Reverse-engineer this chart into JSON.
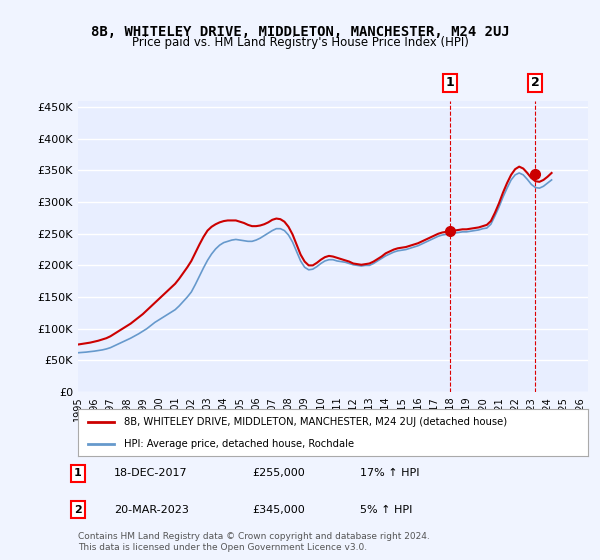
{
  "title": "8B, WHITELEY DRIVE, MIDDLETON, MANCHESTER, M24 2UJ",
  "subtitle": "Price paid vs. HM Land Registry's House Price Index (HPI)",
  "ylabel_ticks": [
    "£0",
    "£50K",
    "£100K",
    "£150K",
    "£200K",
    "£250K",
    "£300K",
    "£350K",
    "£400K",
    "£450K"
  ],
  "ytick_vals": [
    0,
    50000,
    100000,
    150000,
    200000,
    250000,
    300000,
    350000,
    400000,
    450000
  ],
  "ylim": [
    0,
    460000
  ],
  "xlim_start": 1995.0,
  "xlim_end": 2026.5,
  "xtick_years": [
    1995,
    1996,
    1997,
    1998,
    1999,
    2000,
    2001,
    2002,
    2003,
    2004,
    2005,
    2006,
    2007,
    2008,
    2009,
    2010,
    2011,
    2012,
    2013,
    2014,
    2015,
    2016,
    2017,
    2018,
    2019,
    2020,
    2021,
    2022,
    2023,
    2024,
    2025,
    2026
  ],
  "background_color": "#f0f4ff",
  "plot_bg_color": "#e8eeff",
  "grid_color": "#ffffff",
  "red_line_color": "#cc0000",
  "blue_line_color": "#6699cc",
  "marker1_color": "#cc0000",
  "marker2_color": "#cc0000",
  "vline_color": "#dd0000",
  "legend_label1": "8B, WHITELEY DRIVE, MIDDLETON, MANCHESTER, M24 2UJ (detached house)",
  "legend_label2": "HPI: Average price, detached house, Rochdale",
  "point1_label": "1",
  "point1_date": "18-DEC-2017",
  "point1_price": "£255,000",
  "point1_hpi": "17% ↑ HPI",
  "point1_x": 2017.96,
  "point1_y": 255000,
  "point2_label": "2",
  "point2_date": "20-MAR-2023",
  "point2_price": "£345,000",
  "point2_hpi": "5% ↑ HPI",
  "point2_x": 2023.22,
  "point2_y": 345000,
  "footer": "Contains HM Land Registry data © Crown copyright and database right 2024.\nThis data is licensed under the Open Government Licence v3.0.",
  "hpi_data_x": [
    1995.0,
    1995.25,
    1995.5,
    1995.75,
    1996.0,
    1996.25,
    1996.5,
    1996.75,
    1997.0,
    1997.25,
    1997.5,
    1997.75,
    1998.0,
    1998.25,
    1998.5,
    1998.75,
    1999.0,
    1999.25,
    1999.5,
    1999.75,
    2000.0,
    2000.25,
    2000.5,
    2000.75,
    2001.0,
    2001.25,
    2001.5,
    2001.75,
    2002.0,
    2002.25,
    2002.5,
    2002.75,
    2003.0,
    2003.25,
    2003.5,
    2003.75,
    2004.0,
    2004.25,
    2004.5,
    2004.75,
    2005.0,
    2005.25,
    2005.5,
    2005.75,
    2006.0,
    2006.25,
    2006.5,
    2006.75,
    2007.0,
    2007.25,
    2007.5,
    2007.75,
    2008.0,
    2008.25,
    2008.5,
    2008.75,
    2009.0,
    2009.25,
    2009.5,
    2009.75,
    2010.0,
    2010.25,
    2010.5,
    2010.75,
    2011.0,
    2011.25,
    2011.5,
    2011.75,
    2012.0,
    2012.25,
    2012.5,
    2012.75,
    2013.0,
    2013.25,
    2013.5,
    2013.75,
    2014.0,
    2014.25,
    2014.5,
    2014.75,
    2015.0,
    2015.25,
    2015.5,
    2015.75,
    2016.0,
    2016.25,
    2016.5,
    2016.75,
    2017.0,
    2017.25,
    2017.5,
    2017.75,
    2018.0,
    2018.25,
    2018.5,
    2018.75,
    2019.0,
    2019.25,
    2019.5,
    2019.75,
    2020.0,
    2020.25,
    2020.5,
    2020.75,
    2021.0,
    2021.25,
    2021.5,
    2021.75,
    2022.0,
    2022.25,
    2022.5,
    2022.75,
    2023.0,
    2023.25,
    2023.5,
    2023.75,
    2024.0,
    2024.25
  ],
  "hpi_data_y": [
    62000,
    62500,
    63000,
    63800,
    64500,
    65500,
    66500,
    68000,
    70000,
    73000,
    76000,
    79000,
    82000,
    85000,
    88500,
    92000,
    96000,
    100000,
    105000,
    110000,
    114000,
    118000,
    122000,
    126000,
    130000,
    136000,
    143000,
    150000,
    158000,
    170000,
    183000,
    196000,
    208000,
    218000,
    226000,
    232000,
    236000,
    238000,
    240000,
    241000,
    240000,
    239000,
    238000,
    238000,
    240000,
    243000,
    247000,
    251000,
    255000,
    258000,
    258000,
    255000,
    248000,
    237000,
    222000,
    207000,
    197000,
    193000,
    194000,
    198000,
    203000,
    207000,
    209000,
    209000,
    207000,
    206000,
    205000,
    203000,
    201000,
    200000,
    199000,
    200000,
    200000,
    203000,
    207000,
    211000,
    215000,
    218000,
    221000,
    223000,
    224000,
    225000,
    227000,
    229000,
    231000,
    234000,
    237000,
    240000,
    243000,
    246000,
    248000,
    249000,
    250000,
    251000,
    252000,
    253000,
    253000,
    254000,
    255000,
    256000,
    258000,
    259000,
    265000,
    278000,
    292000,
    308000,
    322000,
    335000,
    343000,
    346000,
    343000,
    336000,
    328000,
    323000,
    322000,
    325000,
    330000,
    335000
  ],
  "red_data_x": [
    1995.0,
    1995.25,
    1995.5,
    1995.75,
    1996.0,
    1996.25,
    1996.5,
    1996.75,
    1997.0,
    1997.25,
    1997.5,
    1997.75,
    1998.0,
    1998.25,
    1998.5,
    1998.75,
    1999.0,
    1999.25,
    1999.5,
    1999.75,
    2000.0,
    2000.25,
    2000.5,
    2000.75,
    2001.0,
    2001.25,
    2001.5,
    2001.75,
    2002.0,
    2002.25,
    2002.5,
    2002.75,
    2003.0,
    2003.25,
    2003.5,
    2003.75,
    2004.0,
    2004.25,
    2004.5,
    2004.75,
    2005.0,
    2005.25,
    2005.5,
    2005.75,
    2006.0,
    2006.25,
    2006.5,
    2006.75,
    2007.0,
    2007.25,
    2007.5,
    2007.75,
    2008.0,
    2008.25,
    2008.5,
    2008.75,
    2009.0,
    2009.25,
    2009.5,
    2009.75,
    2010.0,
    2010.25,
    2010.5,
    2010.75,
    2011.0,
    2011.25,
    2011.5,
    2011.75,
    2012.0,
    2012.25,
    2012.5,
    2012.75,
    2013.0,
    2013.25,
    2013.5,
    2013.75,
    2014.0,
    2014.25,
    2014.5,
    2014.75,
    2015.0,
    2015.25,
    2015.5,
    2015.75,
    2016.0,
    2016.25,
    2016.5,
    2016.75,
    2017.0,
    2017.25,
    2017.5,
    2017.75,
    2018.0,
    2018.25,
    2018.5,
    2018.75,
    2019.0,
    2019.25,
    2019.5,
    2019.75,
    2020.0,
    2020.25,
    2020.5,
    2020.75,
    2021.0,
    2021.25,
    2021.5,
    2021.75,
    2022.0,
    2022.25,
    2022.5,
    2022.75,
    2023.0,
    2023.25,
    2023.5,
    2023.75,
    2024.0,
    2024.25
  ],
  "red_data_y": [
    75000,
    76000,
    77000,
    78000,
    79500,
    81000,
    83000,
    85000,
    88000,
    92000,
    96000,
    100000,
    104000,
    108000,
    113000,
    118000,
    123000,
    129000,
    135000,
    141000,
    147000,
    153000,
    159000,
    165000,
    171000,
    179000,
    188000,
    197000,
    207000,
    220000,
    233000,
    245000,
    255000,
    261000,
    265000,
    268000,
    270000,
    271000,
    271000,
    271000,
    269000,
    267000,
    264000,
    262000,
    262000,
    263000,
    265000,
    268000,
    272000,
    274000,
    273000,
    269000,
    261000,
    249000,
    233000,
    217000,
    206000,
    200000,
    200000,
    204000,
    209000,
    213000,
    215000,
    214000,
    212000,
    210000,
    208000,
    206000,
    203000,
    202000,
    201000,
    202000,
    203000,
    206000,
    210000,
    214000,
    219000,
    222000,
    225000,
    227000,
    228000,
    229000,
    231000,
    233000,
    235000,
    238000,
    241000,
    244000,
    247000,
    250000,
    252000,
    253000,
    254000,
    255000,
    256000,
    257000,
    257000,
    258000,
    259000,
    260000,
    262000,
    264000,
    270000,
    283000,
    298000,
    315000,
    330000,
    343000,
    352000,
    356000,
    353000,
    346000,
    338000,
    333000,
    332000,
    335000,
    340000,
    346000
  ]
}
